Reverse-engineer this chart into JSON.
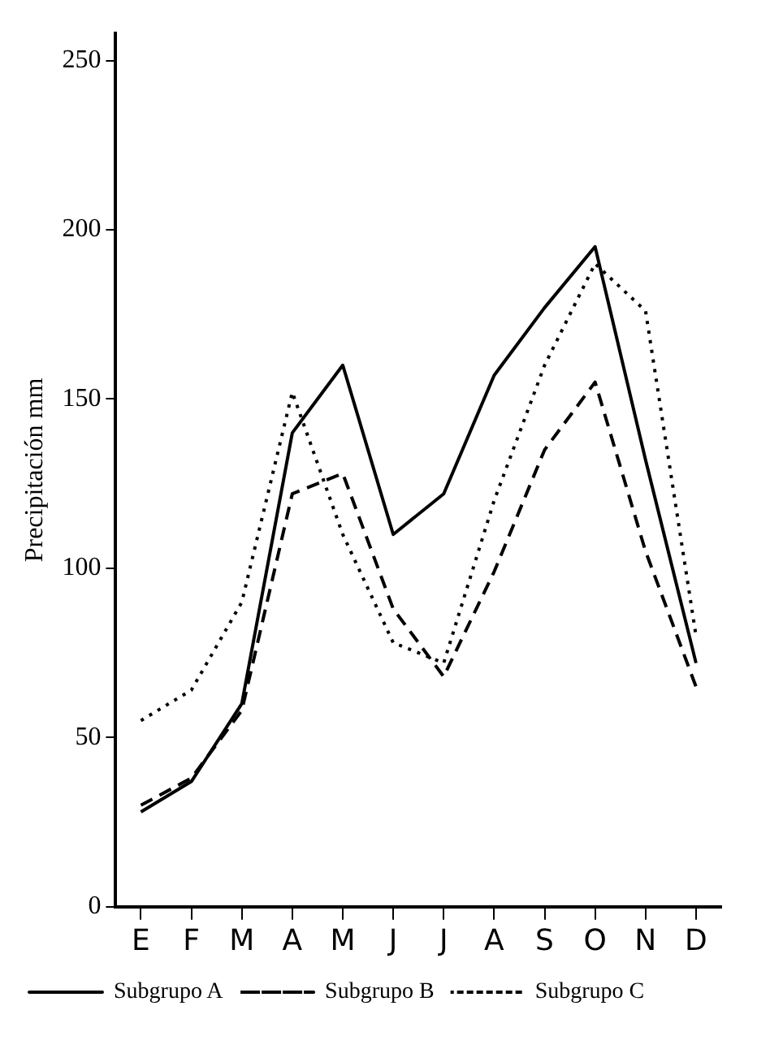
{
  "chart_data": {
    "type": "line",
    "ylabel": "Precipitación mm",
    "categories": [
      "E",
      "F",
      "M",
      "A",
      "M",
      "J",
      "J",
      "A",
      "S",
      "O",
      "N",
      "D"
    ],
    "series": [
      {
        "name": "Subgrupo A",
        "color": "#000000",
        "line_style": "solid",
        "values": [
          28,
          37,
          60,
          140,
          160,
          110,
          122,
          157,
          177,
          195,
          132,
          72
        ]
      },
      {
        "name": "Subgrupo B",
        "color": "#000000",
        "line_style": "dashed",
        "values": [
          30,
          38,
          58,
          122,
          128,
          88,
          68,
          99,
          135,
          155,
          105,
          65
        ]
      },
      {
        "name": "Subgrupo C",
        "color": "#000000",
        "line_style": "dotted",
        "values": [
          55,
          64,
          90,
          152,
          110,
          78,
          72,
          120,
          160,
          190,
          176,
          80
        ]
      }
    ],
    "ylim": [
      0,
      258
    ],
    "yticks": [
      0,
      50,
      100,
      150,
      200,
      250
    ],
    "grid": false,
    "legend": "bottom",
    "marker": "none"
  }
}
